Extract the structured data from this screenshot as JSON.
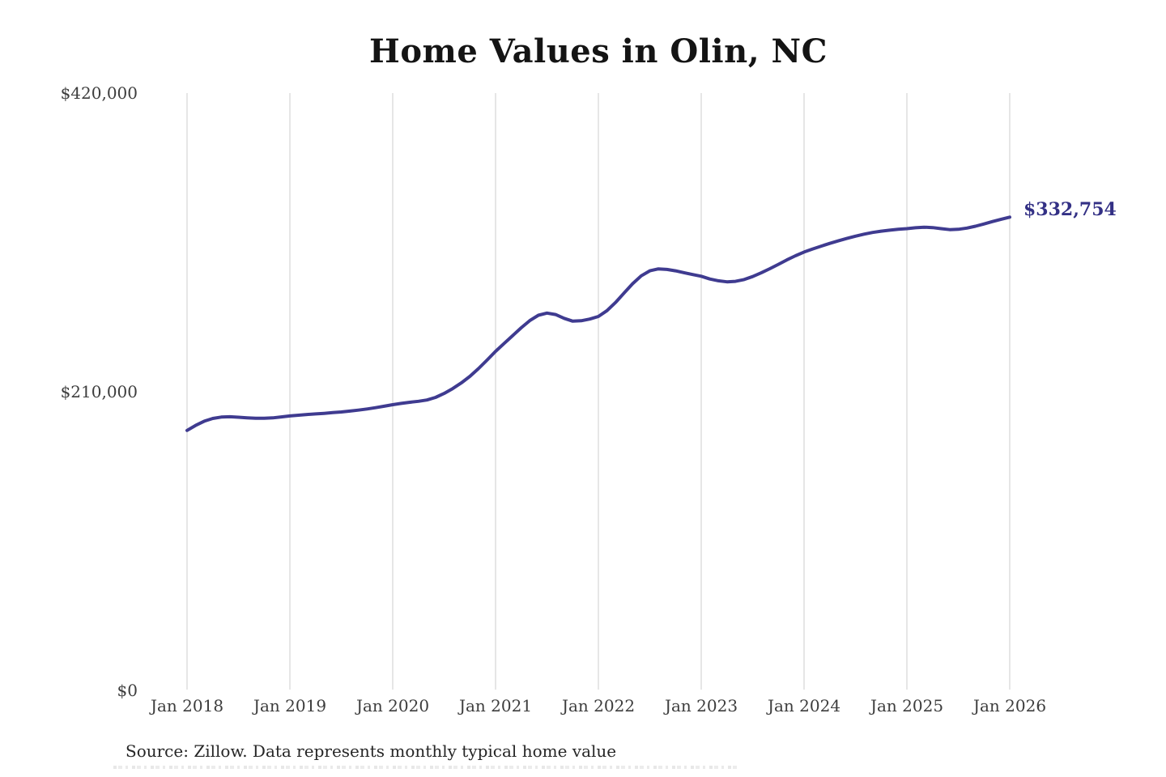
{
  "title": "Home Values in Olin, NC",
  "source_note": "Source: Zillow. Data represents monthly typical home value",
  "colors": {
    "line": "#3f3b90",
    "end_label": "#333085",
    "gridline": "#cccccc",
    "tick_text": "#3d3d3d",
    "title_text": "#141414",
    "source_text": "#262626"
  },
  "chart_data": {
    "type": "line",
    "title": "Home Values in Olin, NC",
    "series_name": "Monthly typical home value",
    "frequency": "monthly",
    "x_start": "Jan 2018",
    "x_end": "Jan 2026",
    "ylim": [
      0,
      420000
    ],
    "grid": "vertical-only",
    "legend": "none",
    "last_value_label": "$332,754",
    "last_value": 332754,
    "x_tick_labels": [
      "Jan 2018",
      "Jan 2019",
      "Jan 2020",
      "Jan 2021",
      "Jan 2022",
      "Jan 2023",
      "Jan 2024",
      "Jan 2025",
      "Jan 2026"
    ],
    "y_ticks": [
      {
        "label": "$420,000",
        "value": 420000
      },
      {
        "label": "$210,000",
        "value": 210000
      },
      {
        "label": "$0",
        "value": 0
      }
    ],
    "values": [
      182800,
      186300,
      189300,
      191200,
      192200,
      192400,
      192100,
      191700,
      191400,
      191400,
      191600,
      192300,
      193000,
      193500,
      194000,
      194400,
      194800,
      195300,
      195800,
      196400,
      197100,
      197900,
      198800,
      199800,
      200900,
      201800,
      202600,
      203300,
      204200,
      206000,
      208800,
      212200,
      216200,
      220800,
      226200,
      232200,
      238400,
      244000,
      249500,
      255000,
      260000,
      263800,
      265300,
      264300,
      261600,
      259600,
      259900,
      261100,
      262900,
      267000,
      272800,
      279500,
      286000,
      291500,
      295000,
      296400,
      296000,
      295000,
      293700,
      292400,
      291200,
      289300,
      288000,
      287300,
      287600,
      288900,
      291000,
      293600,
      296500,
      299600,
      302700,
      305600,
      308200,
      310400,
      312400,
      314300,
      316100,
      317800,
      319400,
      320800,
      322000,
      322900,
      323600,
      324200,
      324700,
      325300,
      325700,
      325400,
      324700,
      324000,
      324200,
      325100,
      326400,
      328000,
      329700,
      331300,
      332754
    ]
  }
}
